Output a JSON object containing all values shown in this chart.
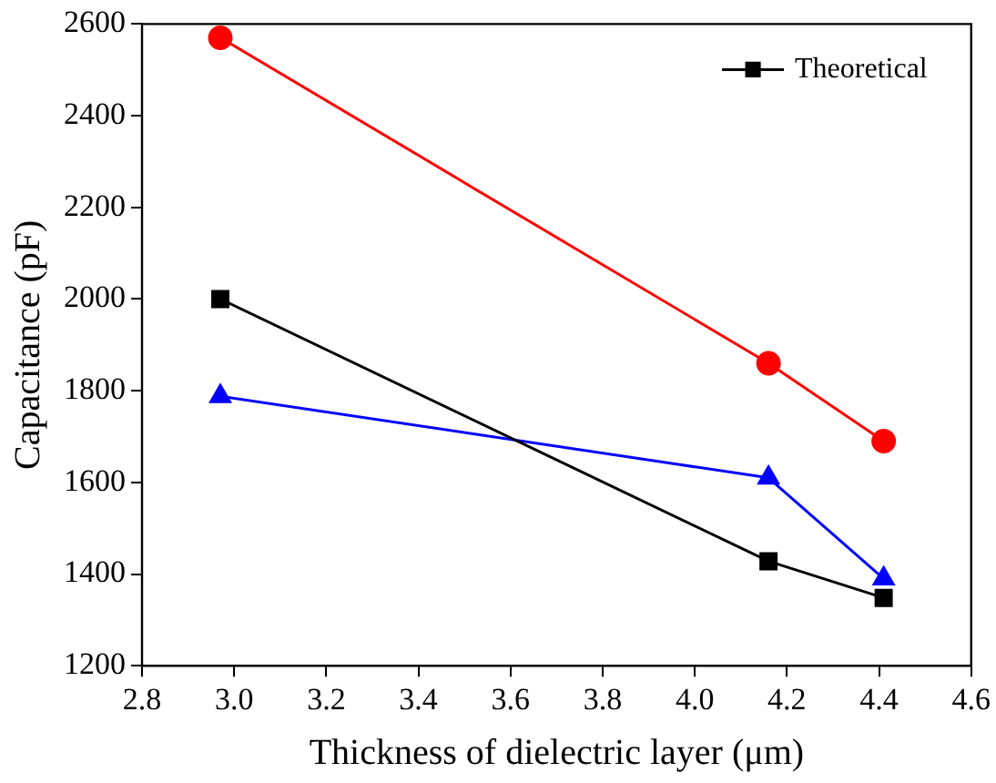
{
  "chart_data": {
    "type": "line",
    "xlabel": "Thickness of dielectric layer (μm)",
    "ylabel": "Capacitance (pF)",
    "xlim": [
      2.8,
      4.6
    ],
    "xticks": [
      2.8,
      3.2,
      3.4,
      3.6,
      3.8,
      4.2,
      4.4,
      4.6,
      {
        "value": 3,
        "label": "3.0"
      },
      {
        "value": 4,
        "label": "4.0"
      }
    ],
    "ylim": [
      1200,
      2600
    ],
    "yticks": [
      1200,
      1400,
      1600,
      1800,
      2000,
      2200,
      2400,
      2600
    ],
    "grid": false,
    "legend": "top right",
    "series": [
      {
        "name": "Theoretical",
        "color": "#000000",
        "marker": "square",
        "x": [
          2.97,
          4.16,
          4.41
        ],
        "values": [
          2000,
          1428,
          1348
        ]
      },
      {
        "color": "#ff0000",
        "marker": "circle",
        "x": [
          2.97,
          4.16,
          4.41
        ],
        "values": [
          2570,
          1860,
          1690
        ]
      },
      {
        "color": "#0000ff",
        "marker": "triangle",
        "x": [
          2.97,
          4.16,
          4.41
        ],
        "values": [
          1788,
          1610,
          1390
        ]
      }
    ]
  }
}
